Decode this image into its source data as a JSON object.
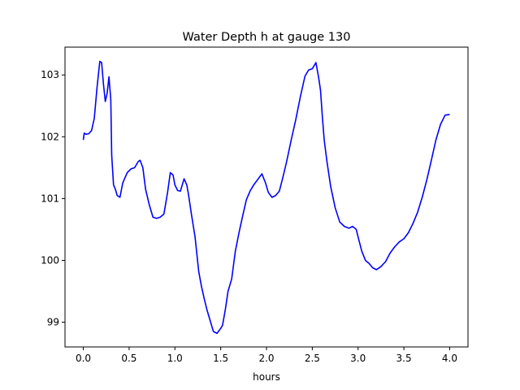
{
  "chart_data": {
    "type": "line",
    "title": "Water Depth h at gauge 130",
    "xlabel": "hours",
    "ylabel": "",
    "xlim": [
      -0.2,
      4.2
    ],
    "ylim": [
      98.6,
      103.45
    ],
    "xticks": [
      0.0,
      0.5,
      1.0,
      1.5,
      2.0,
      2.5,
      3.0,
      3.5,
      4.0
    ],
    "xtick_labels": [
      "0.0",
      "0.5",
      "1.0",
      "1.5",
      "2.0",
      "2.5",
      "3.0",
      "3.5",
      "4.0"
    ],
    "yticks": [
      99,
      100,
      101,
      102,
      103
    ],
    "ytick_labels": [
      "99",
      "100",
      "101",
      "102",
      "103"
    ],
    "grid": false,
    "series": [
      {
        "color": "#0000ff",
        "x": [
          0.0,
          0.01,
          0.03,
          0.06,
          0.09,
          0.12,
          0.15,
          0.18,
          0.2,
          0.22,
          0.24,
          0.26,
          0.28,
          0.3,
          0.31,
          0.33,
          0.35,
          0.37,
          0.4,
          0.43,
          0.45,
          0.48,
          0.52,
          0.56,
          0.6,
          0.62,
          0.65,
          0.68,
          0.72,
          0.76,
          0.8,
          0.84,
          0.88,
          0.92,
          0.95,
          0.98,
          1.0,
          1.03,
          1.06,
          1.1,
          1.13,
          1.15,
          1.18,
          1.22,
          1.26,
          1.29,
          1.32,
          1.35,
          1.38,
          1.42,
          1.46,
          1.5,
          1.52,
          1.55,
          1.58,
          1.62,
          1.66,
          1.7,
          1.74,
          1.78,
          1.82,
          1.86,
          1.9,
          1.95,
          1.99,
          2.02,
          2.06,
          2.1,
          2.14,
          2.18,
          2.22,
          2.27,
          2.32,
          2.37,
          2.42,
          2.46,
          2.5,
          2.54,
          2.57,
          2.59,
          2.61,
          2.63,
          2.66,
          2.7,
          2.75,
          2.8,
          2.85,
          2.9,
          2.94,
          2.98,
          3.0,
          3.04,
          3.08,
          3.12,
          3.16,
          3.2,
          3.25,
          3.3,
          3.35,
          3.4,
          3.45,
          3.5,
          3.55,
          3.6,
          3.65,
          3.7,
          3.75,
          3.8,
          3.85,
          3.9,
          3.95,
          4.0
        ],
        "y": [
          101.95,
          102.06,
          102.04,
          102.05,
          102.1,
          102.3,
          102.8,
          103.22,
          103.2,
          102.85,
          102.57,
          102.7,
          102.97,
          102.6,
          101.7,
          101.22,
          101.15,
          101.05,
          101.02,
          101.25,
          101.32,
          101.42,
          101.48,
          101.5,
          101.6,
          101.62,
          101.5,
          101.15,
          100.9,
          100.7,
          100.68,
          100.7,
          100.75,
          101.1,
          101.42,
          101.38,
          101.22,
          101.13,
          101.12,
          101.32,
          101.22,
          101.05,
          100.75,
          100.38,
          99.82,
          99.58,
          99.38,
          99.2,
          99.05,
          98.85,
          98.82,
          98.9,
          98.95,
          99.2,
          99.5,
          99.7,
          100.15,
          100.45,
          100.72,
          100.98,
          101.12,
          101.22,
          101.3,
          101.4,
          101.25,
          101.1,
          101.02,
          101.05,
          101.12,
          101.35,
          101.6,
          101.95,
          102.28,
          102.65,
          102.98,
          103.08,
          103.1,
          103.2,
          102.95,
          102.75,
          102.32,
          101.95,
          101.6,
          101.2,
          100.85,
          100.62,
          100.55,
          100.52,
          100.55,
          100.5,
          100.38,
          100.15,
          100.0,
          99.95,
          99.88,
          99.85,
          99.9,
          99.98,
          100.12,
          100.22,
          100.3,
          100.35,
          100.45,
          100.6,
          100.78,
          101.02,
          101.3,
          101.62,
          101.95,
          102.2,
          102.35,
          102.36
        ]
      }
    ]
  }
}
